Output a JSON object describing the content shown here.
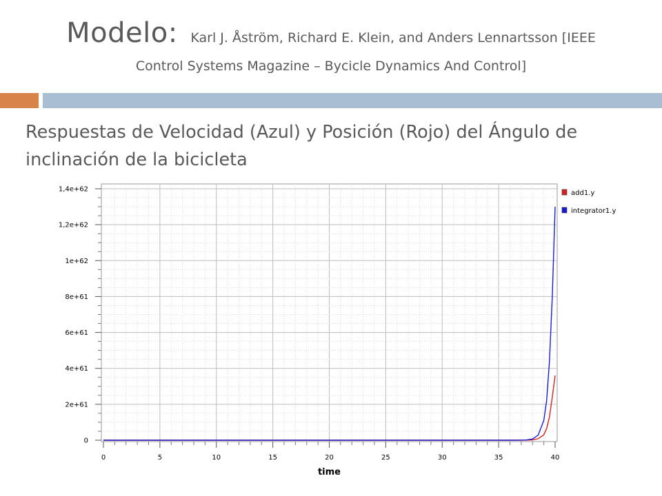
{
  "slide": {
    "title_main": "Modelo:",
    "title_authors": "Karl J. Åström, Richard E. Klein, and Anders Lennartsson [IEEE",
    "title_line2": "Control Systems Magazine – Bycicle Dynamics And Control]",
    "subtitle": "Respuestas de Velocidad (Azul) y Posición (Rojo) del Ángulo de inclinación de la bicicleta",
    "accent_colors": {
      "orange": "#d8834a",
      "blue": "#a9bdd3"
    }
  },
  "chart_data": {
    "type": "line",
    "xlabel": "time",
    "ylabel": "",
    "xlim": [
      0,
      40
    ],
    "ylim": [
      0,
      1.4e+62
    ],
    "x_ticks": [
      0,
      5,
      10,
      15,
      20,
      25,
      30,
      35,
      40
    ],
    "y_ticks": [
      0,
      2e+61,
      4e+61,
      6e+61,
      8e+61,
      1e+62,
      1.2e+62,
      1.4e+62
    ],
    "y_tick_labels": [
      "0",
      "2e+61",
      "4e+61",
      "6e+61",
      "8e+61",
      "1e+62",
      "1,2e+62",
      "1,4e+62"
    ],
    "grid": true,
    "legend_position": "right",
    "series": [
      {
        "name": "add1.y",
        "color": "#d42020",
        "x": [
          0,
          30,
          36,
          37,
          37.5,
          38,
          38.5,
          39,
          39.25,
          39.5,
          39.75,
          40
        ],
        "values": [
          0,
          0,
          1e+57,
          1e+58,
          5e+58,
          2e+59,
          8e+59,
          3e+60,
          6.5e+60,
          1.3e+61,
          2.4e+61,
          3.6e+61
        ]
      },
      {
        "name": "integrator1.y",
        "color": "#1a1ad4",
        "x": [
          0,
          30,
          36,
          37,
          37.5,
          38,
          38.5,
          39,
          39.25,
          39.5,
          39.75,
          40
        ],
        "values": [
          0,
          0,
          3e+57,
          3e+58,
          1.5e+59,
          7e+59,
          2.8e+60,
          1.1e+61,
          2.2e+61,
          4.4e+61,
          8e+61,
          1.3e+62
        ]
      }
    ]
  }
}
